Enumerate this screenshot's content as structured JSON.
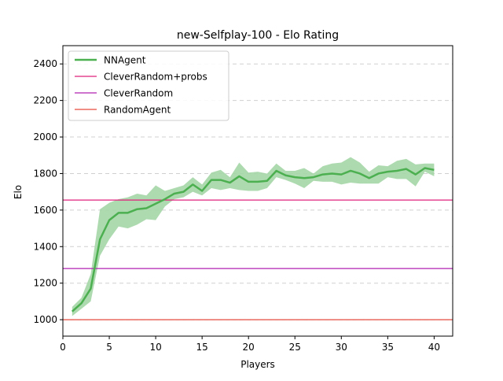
{
  "chart_data": {
    "type": "line",
    "title": "new-Selfplay-100 - Elo Rating",
    "xlabel": "Players",
    "ylabel": "Elo",
    "xlim": [
      0,
      42
    ],
    "ylim": [
      910,
      2500
    ],
    "xticks": [
      0,
      5,
      10,
      15,
      20,
      25,
      30,
      35,
      40
    ],
    "yticks": [
      1000,
      1200,
      1400,
      1600,
      1800,
      2000,
      2200,
      2400
    ],
    "grid": "horizontal-dashed",
    "legend_position": "top-left",
    "series": [
      {
        "name": "NNAgent",
        "color": "#4caf50",
        "band_color": "#a5d6a7",
        "x": [
          1,
          2,
          3,
          4,
          5,
          6,
          7,
          8,
          9,
          10,
          11,
          12,
          13,
          14,
          15,
          16,
          17,
          18,
          19,
          20,
          21,
          22,
          23,
          24,
          25,
          26,
          27,
          28,
          29,
          30,
          31,
          32,
          33,
          34,
          35,
          36,
          37,
          38,
          39,
          40
        ],
        "y": [
          1045,
          1090,
          1170,
          1440,
          1545,
          1585,
          1585,
          1605,
          1610,
          1635,
          1660,
          1690,
          1700,
          1740,
          1705,
          1765,
          1765,
          1750,
          1785,
          1755,
          1755,
          1760,
          1815,
          1790,
          1780,
          1775,
          1780,
          1795,
          1800,
          1795,
          1815,
          1800,
          1775,
          1800,
          1810,
          1815,
          1825,
          1795,
          1830,
          1820
        ],
        "lower": [
          1020,
          1060,
          1100,
          1350,
          1440,
          1510,
          1500,
          1520,
          1550,
          1545,
          1620,
          1660,
          1670,
          1700,
          1680,
          1720,
          1710,
          1720,
          1710,
          1705,
          1705,
          1720,
          1780,
          1765,
          1745,
          1720,
          1760,
          1755,
          1755,
          1740,
          1750,
          1745,
          1745,
          1745,
          1780,
          1770,
          1770,
          1730,
          1810,
          1785
        ],
        "upper": [
          1070,
          1120,
          1250,
          1605,
          1640,
          1660,
          1670,
          1690,
          1680,
          1735,
          1705,
          1720,
          1735,
          1780,
          1740,
          1805,
          1820,
          1780,
          1860,
          1805,
          1810,
          1800,
          1855,
          1815,
          1815,
          1830,
          1800,
          1840,
          1855,
          1860,
          1890,
          1860,
          1810,
          1845,
          1840,
          1870,
          1880,
          1850,
          1855,
          1855
        ]
      },
      {
        "name": "CleverRandom+probs",
        "color": "#e0207c",
        "type": "hline",
        "y": 1655
      },
      {
        "name": "CleverRandom",
        "color": "#b020b0",
        "type": "hline",
        "y": 1280
      },
      {
        "name": "RandomAgent",
        "color": "#e64a3c",
        "type": "hline",
        "y": 1000
      }
    ]
  }
}
